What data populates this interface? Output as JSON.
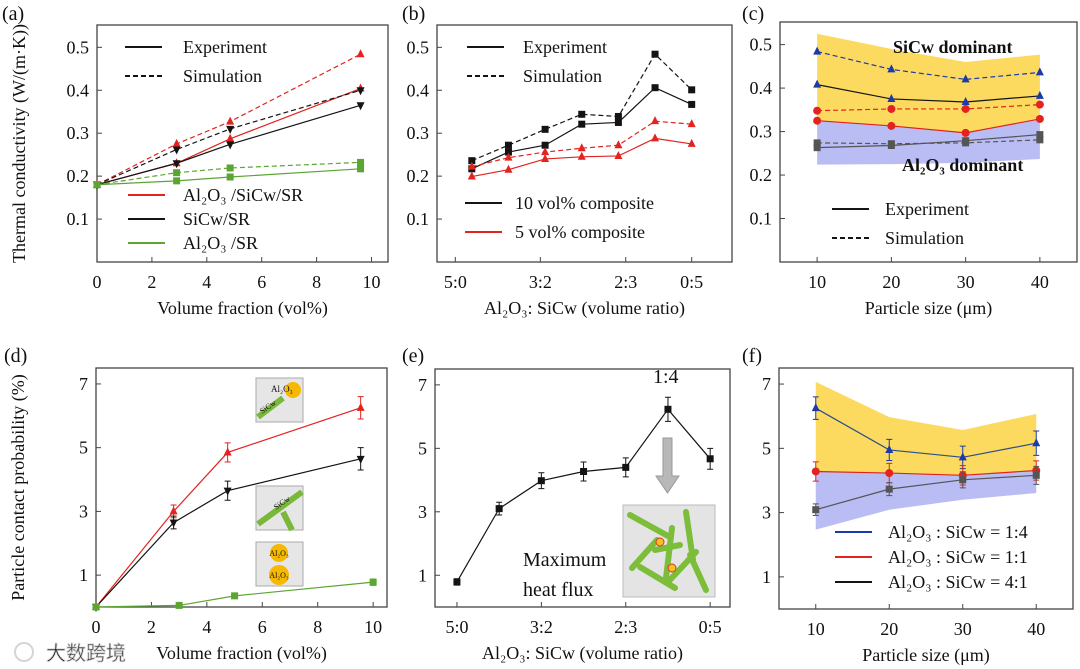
{
  "watermark": "大数跨境",
  "colors": {
    "red": "#e2231f",
    "black": "#141414",
    "green": "#5ca533",
    "blue": "#1c3aa8",
    "gray": "#555555",
    "yellow_band": "#fbd64e",
    "blue_band": "#b3b6f3"
  },
  "chart_data": [
    {
      "id": "a",
      "panel_label": "(a)",
      "type": "line",
      "xlabel": "Volume fraction (vol%)",
      "ylabel": "Thermal conductivity (W/(m·K))",
      "xlim": [
        0,
        10.6
      ],
      "ylim": [
        0,
        0.552
      ],
      "xticks": [
        {
          "v": 0,
          "t": "0"
        },
        {
          "v": 2,
          "t": "2"
        },
        {
          "v": 4,
          "t": "4"
        },
        {
          "v": 6,
          "t": "6"
        },
        {
          "v": 8,
          "t": "8"
        },
        {
          "v": 10,
          "t": "10"
        }
      ],
      "yticks": [
        {
          "v": 0.1,
          "t": "0.1"
        },
        {
          "v": 0.2,
          "t": "0.2"
        },
        {
          "v": 0.3,
          "t": "0.3"
        },
        {
          "v": 0.4,
          "t": "0.4"
        },
        {
          "v": 0.5,
          "t": "0.5"
        }
      ],
      "legend_style": [
        "Experiment",
        "Simulation"
      ],
      "legend_series": [
        {
          "name": "Al₂O₃ /SiCw/SR",
          "color": "red"
        },
        {
          "name": "SiCw/SR",
          "color": "black"
        },
        {
          "name": "Al₂O₃ /SR",
          "color": "green"
        }
      ],
      "series": [
        {
          "name": "Al₂O₃/SiCw/SR simulation",
          "color": "red",
          "dash": true,
          "marker": "up",
          "x": [
            0,
            2.9,
            4.85,
            9.6
          ],
          "y": [
            0.18,
            0.275,
            0.327,
            0.484
          ]
        },
        {
          "name": "Al₂O₃/SiCw/SR experiment",
          "color": "red",
          "dash": false,
          "marker": "up",
          "x": [
            0,
            2.9,
            4.85,
            9.6
          ],
          "y": [
            0.18,
            0.23,
            0.287,
            0.404
          ]
        },
        {
          "name": "SiCw/SR simulation",
          "color": "black",
          "dash": true,
          "marker": "down",
          "x": [
            0,
            2.9,
            4.85,
            9.6
          ],
          "y": [
            0.18,
            0.262,
            0.31,
            0.4
          ]
        },
        {
          "name": "SiCw/SR experiment",
          "color": "black",
          "dash": false,
          "marker": "down",
          "x": [
            0,
            2.9,
            4.85,
            9.6
          ],
          "y": [
            0.18,
            0.23,
            0.274,
            0.365
          ]
        },
        {
          "name": "Al₂O₃/SR simulation",
          "color": "green",
          "dash": true,
          "marker": "square",
          "x": [
            0,
            2.9,
            4.85,
            9.6
          ],
          "y": [
            0.18,
            0.208,
            0.219,
            0.232
          ]
        },
        {
          "name": "Al₂O₃/SR experiment",
          "color": "green",
          "dash": false,
          "marker": "square",
          "x": [
            0,
            2.9,
            4.85,
            9.6
          ],
          "y": [
            0.18,
            0.189,
            0.198,
            0.217
          ]
        }
      ]
    },
    {
      "id": "b",
      "panel_label": "(b)",
      "type": "line",
      "xlabel": "Al₂O₃:  SiCw (volume ratio)",
      "ylabel": "",
      "xlim": [
        -0.95,
        7.1
      ],
      "ylim": [
        0,
        0.552
      ],
      "xticks": [
        {
          "v": -0.45,
          "t": "5:0"
        },
        {
          "v": 1.87,
          "t": "3:2"
        },
        {
          "v": 4.2,
          "t": "2:3"
        },
        {
          "v": 6,
          "t": "0:5"
        }
      ],
      "yticks": [
        {
          "v": 0.1,
          "t": "0.1"
        },
        {
          "v": 0.2,
          "t": "0.2"
        },
        {
          "v": 0.3,
          "t": "0.3"
        },
        {
          "v": 0.4,
          "t": "0.4"
        },
        {
          "v": 0.5,
          "t": "0.5"
        }
      ],
      "legend_style": [
        "Experiment",
        "Simulation"
      ],
      "legend_series": [
        {
          "name": "10 vol% composite",
          "color": "black"
        },
        {
          "name": " 5 vol% composite",
          "color": "red"
        }
      ],
      "series": [
        {
          "name": "10 vol% simulation",
          "color": "black",
          "dash": true,
          "marker": "square",
          "x": [
            0,
            1,
            2,
            3,
            4,
            5,
            6
          ],
          "y": [
            0.236,
            0.272,
            0.309,
            0.344,
            0.339,
            0.484,
            0.401
          ]
        },
        {
          "name": "10 vol% experiment",
          "color": "black",
          "dash": false,
          "marker": "square",
          "x": [
            0,
            1,
            2,
            3,
            4,
            5,
            6
          ],
          "y": [
            0.217,
            0.256,
            0.272,
            0.321,
            0.325,
            0.406,
            0.367
          ]
        },
        {
          "name": "5 vol% simulation",
          "color": "red",
          "dash": true,
          "marker": "up",
          "x": [
            0,
            1,
            2,
            3,
            4,
            5,
            6
          ],
          "y": [
            0.222,
            0.243,
            0.256,
            0.265,
            0.272,
            0.328,
            0.321
          ]
        },
        {
          "name": "5 vol% experiment",
          "color": "red",
          "dash": false,
          "marker": "up",
          "x": [
            0,
            1,
            2,
            3,
            4,
            5,
            6
          ],
          "y": [
            0.199,
            0.215,
            0.24,
            0.245,
            0.247,
            0.288,
            0.275
          ]
        }
      ]
    },
    {
      "id": "c",
      "panel_label": "(c)",
      "type": "line",
      "xlabel": "Particle size (μm)",
      "ylabel": "",
      "xlim": [
        5,
        45
      ],
      "ylim": [
        0,
        0.552
      ],
      "xticks": [
        {
          "v": 10,
          "t": "10"
        },
        {
          "v": 20,
          "t": "20"
        },
        {
          "v": 30,
          "t": "30"
        },
        {
          "v": 40,
          "t": "40"
        }
      ],
      "yticks": [
        {
          "v": 0.1,
          "t": "0.1"
        },
        {
          "v": 0.2,
          "t": "0.2"
        },
        {
          "v": 0.3,
          "t": "0.3"
        },
        {
          "v": 0.4,
          "t": "0.4"
        },
        {
          "v": 0.5,
          "t": "0.5"
        }
      ],
      "annotations": [
        "SiCw dominant",
        "Al₂O₃ dominant"
      ],
      "legend_style": [
        "Experiment",
        "Simulation"
      ],
      "bands": [
        {
          "color": "yellow_band",
          "x": [
            10,
            20,
            30,
            40
          ],
          "upper": [
            0.525,
            0.49,
            0.46,
            0.477
          ],
          "lower": [
            0.325,
            0.313,
            0.297,
            0.329
          ]
        },
        {
          "color": "blue_band",
          "x": [
            10,
            20,
            30,
            40
          ],
          "upper": [
            0.325,
            0.313,
            0.297,
            0.329
          ],
          "lower": [
            0.224,
            0.225,
            0.228,
            0.237
          ]
        }
      ],
      "series": [
        {
          "name": "1:4 simulation",
          "color": "blue",
          "dash": true,
          "marker": "up",
          "x": [
            10,
            20,
            30,
            40
          ],
          "y": [
            0.484,
            0.443,
            0.42,
            0.436
          ]
        },
        {
          "name": "1:4 experiment",
          "color": "black",
          "dash": false,
          "marker": "up",
          "markerColor": "blue",
          "x": [
            10,
            20,
            30,
            40
          ],
          "y": [
            0.408,
            0.375,
            0.368,
            0.382
          ]
        },
        {
          "name": "1:1 simulation",
          "color": "red",
          "dash": true,
          "marker": "circle",
          "x": [
            10,
            20,
            30,
            40
          ],
          "y": [
            0.348,
            0.352,
            0.352,
            0.362
          ]
        },
        {
          "name": "1:1 experiment",
          "color": "red",
          "dash": false,
          "marker": "circle",
          "x": [
            10,
            20,
            30,
            40
          ],
          "y": [
            0.325,
            0.313,
            0.297,
            0.329
          ]
        },
        {
          "name": "4:1 simulation",
          "color": "gray",
          "dash": true,
          "marker": "square",
          "x": [
            10,
            20,
            30,
            40
          ],
          "y": [
            0.274,
            0.272,
            0.274,
            0.281
          ]
        },
        {
          "name": "4:1 experiment",
          "color": "gray",
          "dash": false,
          "marker": "square",
          "x": [
            10,
            20,
            30,
            40
          ],
          "y": [
            0.263,
            0.268,
            0.279,
            0.293
          ]
        }
      ]
    },
    {
      "id": "d",
      "panel_label": "(d)",
      "type": "line",
      "xlabel": "Volume fraction (vol%)",
      "ylabel": "Particle contact probability (%)",
      "xlim": [
        0,
        10.5
      ],
      "ylim": [
        0,
        7.5
      ],
      "xticks": [
        {
          "v": 0,
          "t": "0"
        },
        {
          "v": 2,
          "t": "2"
        },
        {
          "v": 4,
          "t": "4"
        },
        {
          "v": 6,
          "t": "6"
        },
        {
          "v": 8,
          "t": "8"
        },
        {
          "v": 10,
          "t": "10"
        }
      ],
      "yticks": [
        {
          "v": 1,
          "t": "1"
        },
        {
          "v": 3,
          "t": "3"
        },
        {
          "v": 5,
          "t": "5"
        },
        {
          "v": 7,
          "t": "7"
        }
      ],
      "insets": [
        {
          "labels": [
            "Al₂O₃",
            "SiCw"
          ],
          "kind": "particle-whisker"
        },
        {
          "labels": [
            "SiCw"
          ],
          "kind": "whisker-whisker"
        },
        {
          "labels": [
            "Al₂O₃",
            "Al₂O₃"
          ],
          "kind": "particle-particle"
        }
      ],
      "series": [
        {
          "name": "Al₂O₃–SiCw contact",
          "color": "red",
          "dash": false,
          "marker": "up",
          "x": [
            0,
            2.8,
            4.75,
            9.55
          ],
          "y": [
            0,
            3.0,
            4.85,
            6.25
          ],
          "err": [
            0,
            0.2,
            0.3,
            0.35
          ]
        },
        {
          "name": "SiCw–SiCw contact",
          "color": "black",
          "dash": false,
          "marker": "down",
          "x": [
            0,
            2.8,
            4.75,
            9.55
          ],
          "y": [
            0,
            2.65,
            3.65,
            4.65
          ],
          "err": [
            0,
            0.2,
            0.3,
            0.35
          ]
        },
        {
          "name": "Al₂O₃–Al₂O₃ contact",
          "color": "green",
          "dash": false,
          "marker": "square",
          "x": [
            0,
            3.0,
            5.0,
            10
          ],
          "y": [
            0,
            0.05,
            0.35,
            0.78
          ],
          "err": [
            0,
            0,
            0,
            0.1
          ]
        }
      ]
    },
    {
      "id": "e",
      "panel_label": "(e)",
      "type": "line",
      "xlabel": "Al₂O₃:  SiCw (volume ratio)",
      "ylabel": "",
      "xlim": [
        -0.52,
        6.47
      ],
      "ylim": [
        0,
        7.5
      ],
      "xticks": [
        {
          "v": 0,
          "t": "5:0"
        },
        {
          "v": 2,
          "t": "3:2"
        },
        {
          "v": 4,
          "t": "2:3"
        },
        {
          "v": 6,
          "t": "0:5"
        }
      ],
      "yticks": [
        {
          "v": 1,
          "t": "1"
        },
        {
          "v": 3,
          "t": "3"
        },
        {
          "v": 5,
          "t": "5"
        },
        {
          "v": 7,
          "t": "7"
        }
      ],
      "annotations": [
        "1:4",
        "Maximum",
        "heat flux"
      ],
      "series": [
        {
          "name": "10 vol% composite",
          "color": "black",
          "dash": false,
          "marker": "square",
          "x": [
            0,
            1,
            2,
            3,
            4,
            5,
            6
          ],
          "y": [
            0.79,
            3.1,
            3.98,
            4.27,
            4.4,
            6.23,
            4.67
          ],
          "err": [
            0.1,
            0.2,
            0.25,
            0.3,
            0.3,
            0.38,
            0.33
          ]
        }
      ]
    },
    {
      "id": "f",
      "panel_label": "(f)",
      "type": "line",
      "xlabel": "Particle size (μm)",
      "ylabel": "",
      "xlim": [
        5,
        45
      ],
      "ylim": [
        0,
        7.5
      ],
      "xticks": [
        {
          "v": 10,
          "t": "10"
        },
        {
          "v": 20,
          "t": "20"
        },
        {
          "v": 30,
          "t": "30"
        },
        {
          "v": 40,
          "t": "40"
        }
      ],
      "yticks": [
        {
          "v": 1,
          "t": "1"
        },
        {
          "v": 3,
          "t": "3"
        },
        {
          "v": 5,
          "t": "5"
        },
        {
          "v": 7,
          "t": "7"
        }
      ],
      "legend_series": [
        {
          "name": "Al₂O₃ : SiCw = 1:4",
          "color": "blue"
        },
        {
          "name": "Al₂O₃ : SiCw = 1:1",
          "color": "red"
        },
        {
          "name": "Al₂O₃ : SiCw = 4:1",
          "color": "black"
        }
      ],
      "bands": [
        {
          "color": "yellow_band",
          "x": [
            10,
            20,
            30,
            40
          ],
          "upper": [
            7.07,
            5.97,
            5.57,
            6.07
          ],
          "lower": [
            4.28,
            4.23,
            4.16,
            4.31
          ]
        },
        {
          "color": "blue_band",
          "x": [
            10,
            20,
            30,
            40
          ],
          "upper": [
            4.28,
            4.23,
            4.16,
            4.31
          ],
          "lower": [
            2.47,
            3.09,
            3.4,
            3.61
          ]
        }
      ],
      "series": [
        {
          "name": "1:4",
          "color": "black",
          "dash": false,
          "marker": "up",
          "markerColor": "blue",
          "lineColor": "#2a4f8a",
          "x": [
            10,
            20,
            30,
            40
          ],
          "y": [
            6.25,
            4.95,
            4.72,
            5.16
          ],
          "err": [
            0.35,
            0.33,
            0.35,
            0.38
          ]
        },
        {
          "name": "1:1",
          "color": "red",
          "dash": false,
          "marker": "circle",
          "x": [
            10,
            20,
            30,
            40
          ],
          "y": [
            4.28,
            4.23,
            4.16,
            4.31
          ],
          "err": [
            0.3,
            0.3,
            0.3,
            0.3
          ]
        },
        {
          "name": "4:1",
          "color": "gray",
          "dash": false,
          "marker": "square",
          "x": [
            10,
            20,
            30,
            40
          ],
          "y": [
            3.09,
            3.73,
            4.02,
            4.16
          ],
          "err": [
            0.18,
            0.2,
            0.25,
            0.28
          ]
        }
      ]
    }
  ]
}
